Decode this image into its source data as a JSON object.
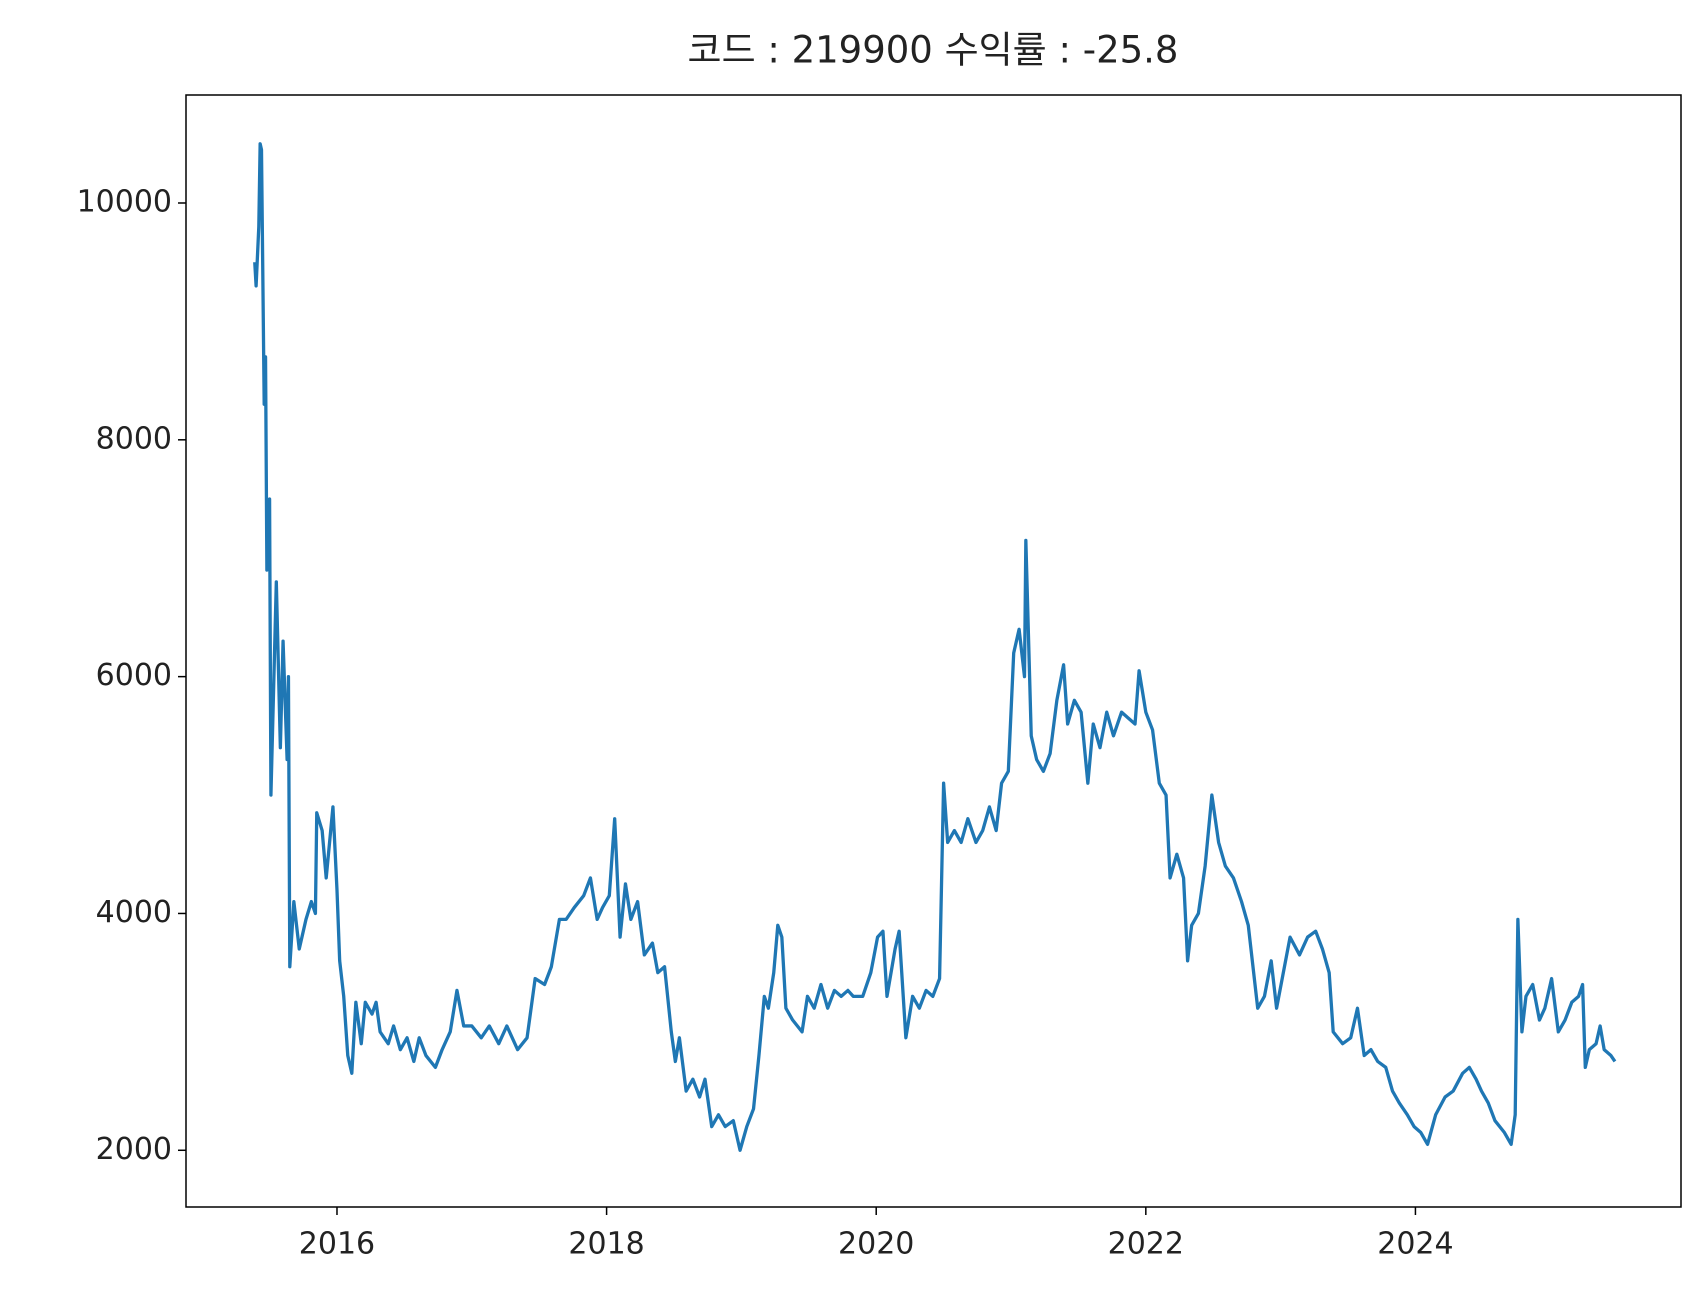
{
  "chart_data": {
    "type": "line",
    "title": "코드 : 219900 수익률 : -25.8",
    "x": [
      2015.39,
      2015.4,
      2015.42,
      2015.43,
      2015.44,
      2015.46,
      2015.47,
      2015.48,
      2015.5,
      2015.51,
      2015.55,
      2015.58,
      2015.6,
      2015.63,
      2015.64,
      2015.65,
      2015.68,
      2015.72,
      2015.77,
      2015.81,
      2015.84,
      2015.85,
      2015.89,
      2015.92,
      2015.97,
      2016.0,
      2016.02,
      2016.05,
      2016.08,
      2016.11,
      2016.14,
      2016.18,
      2016.21,
      2016.26,
      2016.29,
      2016.32,
      2016.38,
      2016.42,
      2016.47,
      2016.52,
      2016.57,
      2016.61,
      2016.66,
      2016.73,
      2016.78,
      2016.84,
      2016.89,
      2016.94,
      2017.0,
      2017.07,
      2017.13,
      2017.2,
      2017.26,
      2017.34,
      2017.41,
      2017.47,
      2017.54,
      2017.59,
      2017.65,
      2017.7,
      2017.76,
      2017.83,
      2017.88,
      2017.93,
      2017.97,
      2018.02,
      2018.06,
      2018.1,
      2018.14,
      2018.18,
      2018.23,
      2018.28,
      2018.34,
      2018.38,
      2018.43,
      2018.48,
      2018.51,
      2018.54,
      2018.59,
      2018.64,
      2018.69,
      2018.73,
      2018.78,
      2018.83,
      2018.88,
      2018.94,
      2018.99,
      2019.04,
      2019.09,
      2019.13,
      2019.17,
      2019.2,
      2019.24,
      2019.27,
      2019.3,
      2019.33,
      2019.38,
      2019.45,
      2019.49,
      2019.54,
      2019.59,
      2019.64,
      2019.69,
      2019.74,
      2019.79,
      2019.83,
      2019.9,
      2019.96,
      2020.01,
      2020.05,
      2020.08,
      2020.11,
      2020.14,
      2020.17,
      2020.22,
      2020.27,
      2020.32,
      2020.37,
      2020.42,
      2020.47,
      2020.5,
      2020.53,
      2020.58,
      2020.63,
      2020.68,
      2020.74,
      2020.79,
      2020.84,
      2020.89,
      2020.93,
      2020.98,
      2021.02,
      2021.06,
      2021.1,
      2021.11,
      2021.15,
      2021.19,
      2021.24,
      2021.29,
      2021.34,
      2021.39,
      2021.42,
      2021.47,
      2021.52,
      2021.57,
      2021.61,
      2021.66,
      2021.71,
      2021.76,
      2021.82,
      2021.87,
      2021.92,
      2021.95,
      2022.0,
      2022.05,
      2022.1,
      2022.15,
      2022.18,
      2022.23,
      2022.28,
      2022.31,
      2022.34,
      2022.39,
      2022.44,
      2022.49,
      2022.54,
      2022.59,
      2022.65,
      2022.71,
      2022.76,
      2022.8,
      2022.83,
      2022.88,
      2022.93,
      2022.97,
      2023.02,
      2023.07,
      2023.14,
      2023.2,
      2023.26,
      2023.31,
      2023.36,
      2023.39,
      2023.46,
      2023.52,
      2023.57,
      2023.62,
      2023.67,
      2023.72,
      2023.78,
      2023.83,
      2023.88,
      2023.94,
      2023.99,
      2024.04,
      2024.09,
      2024.15,
      2024.22,
      2024.28,
      2024.35,
      2024.4,
      2024.45,
      2024.49,
      2024.54,
      2024.59,
      2024.66,
      2024.71,
      2024.74,
      2024.76,
      2024.79,
      2024.82,
      2024.87,
      2024.92,
      2024.96,
      2025.01,
      2025.06,
      2025.11,
      2025.16,
      2025.21,
      2025.24,
      2025.26,
      2025.29,
      2025.34,
      2025.37,
      2025.4,
      2025.45,
      2025.48
    ],
    "series": [
      {
        "name": "219900",
        "color": "#1f77b4",
        "values": [
          9500,
          9300,
          9800,
          10500,
          10450,
          8300,
          8700,
          6900,
          7500,
          5000,
          6800,
          5400,
          6300,
          5300,
          6000,
          3550,
          4100,
          3700,
          3950,
          4100,
          4000,
          4850,
          4700,
          4300,
          4900,
          4200,
          3600,
          3300,
          2800,
          2650,
          3250,
          2900,
          3250,
          3150,
          3250,
          3000,
          2900,
          3050,
          2850,
          2950,
          2750,
          2950,
          2800,
          2700,
          2850,
          3000,
          3350,
          3050,
          3050,
          2950,
          3050,
          2900,
          3050,
          2850,
          2950,
          3450,
          3400,
          3550,
          3950,
          3950,
          4050,
          4150,
          4300,
          3950,
          4050,
          4150,
          4800,
          3800,
          4250,
          3950,
          4100,
          3650,
          3750,
          3500,
          3550,
          3000,
          2750,
          2950,
          2500,
          2600,
          2450,
          2600,
          2200,
          2300,
          2200,
          2250,
          2000,
          2200,
          2350,
          2800,
          3300,
          3200,
          3500,
          3900,
          3800,
          3200,
          3100,
          3000,
          3300,
          3200,
          3400,
          3200,
          3350,
          3300,
          3350,
          3300,
          3300,
          3500,
          3800,
          3850,
          3300,
          3500,
          3700,
          3850,
          2950,
          3300,
          3200,
          3350,
          3300,
          3450,
          5100,
          4600,
          4700,
          4600,
          4800,
          4600,
          4700,
          4900,
          4700,
          5100,
          5200,
          6200,
          6400,
          6000,
          7150,
          5500,
          5300,
          5200,
          5350,
          5800,
          6100,
          5600,
          5800,
          5700,
          5100,
          5600,
          5400,
          5700,
          5500,
          5700,
          5650,
          5600,
          6050,
          5700,
          5550,
          5100,
          5000,
          4300,
          4500,
          4300,
          3600,
          3900,
          4000,
          4400,
          5000,
          4600,
          4400,
          4300,
          4100,
          3900,
          3500,
          3200,
          3300,
          3600,
          3200,
          3500,
          3800,
          3650,
          3800,
          3850,
          3700,
          3500,
          3000,
          2900,
          2950,
          3200,
          2800,
          2850,
          2750,
          2700,
          2500,
          2400,
          2300,
          2200,
          2150,
          2050,
          2300,
          2450,
          2500,
          2650,
          2700,
          2600,
          2500,
          2400,
          2250,
          2150,
          2050,
          2300,
          3950,
          3000,
          3300,
          3400,
          3100,
          3200,
          3450,
          3000,
          3100,
          3250,
          3300,
          3400,
          2700,
          2850,
          2900,
          3050,
          2850,
          2800,
          2750
        ]
      }
    ],
    "xlim": [
      2014.88,
      2025.97
    ],
    "xticks": [
      2016,
      2018,
      2020,
      2022,
      2024
    ],
    "ylim": [
      1521,
      10912
    ],
    "yticks": [
      2000,
      4000,
      6000,
      8000,
      10000
    ],
    "grid": false
  }
}
